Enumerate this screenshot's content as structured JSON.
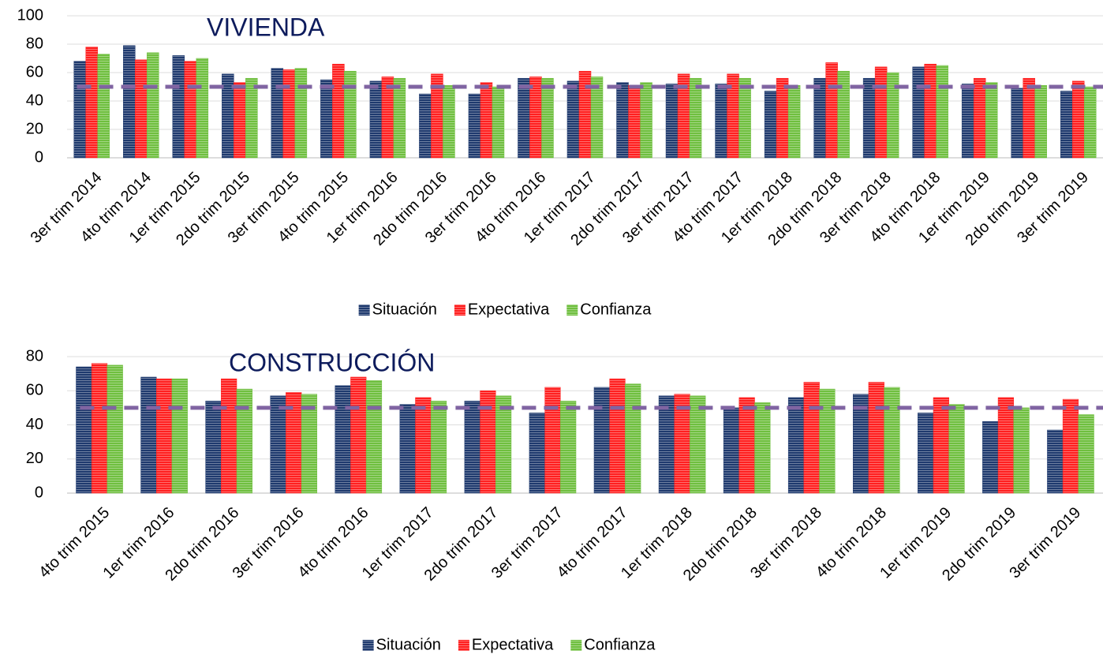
{
  "chart_data": [
    {
      "type": "bar",
      "title": "VIVIENDA",
      "categories": [
        "3er trim 2014",
        "4to trim 2014",
        "1er trim 2015",
        "2do trim 2015",
        "3er trim 2015",
        "4to trim 2015",
        "1er trim 2016",
        "2do trim 2016",
        "3er trim 2016",
        "4to trim 2016",
        "1er trim 2017",
        "2do trim 2017",
        "3er trim 2017",
        "4to trim 2017",
        "1er trim 2018",
        "2do trim 2018",
        "3er trim 2018",
        "4to trim 2018",
        "1er trim 2019",
        "2do trim 2019",
        "3er trim 2019"
      ],
      "series": [
        {
          "name": "Situación",
          "color": "#1f3a6e",
          "values": [
            68,
            79,
            72,
            59,
            63,
            55,
            54,
            45,
            45,
            56,
            54,
            53,
            52,
            52,
            47,
            56,
            56,
            64,
            52,
            49,
            47
          ]
        },
        {
          "name": "Expectativa",
          "color": "#ff1f1f",
          "values": [
            78,
            69,
            68,
            53,
            62,
            66,
            57,
            59,
            53,
            57,
            61,
            51,
            59,
            59,
            56,
            67,
            64,
            66,
            56,
            56,
            54
          ]
        },
        {
          "name": "Confianza",
          "color": "#6fbf3f",
          "values": [
            73,
            74,
            70,
            56,
            63,
            61,
            56,
            51,
            50,
            56,
            57,
            53,
            56,
            56,
            51,
            61,
            60,
            65,
            53,
            51,
            50
          ]
        }
      ],
      "reference": 50,
      "reference_color": "#8064a2",
      "ylim": [
        0,
        100
      ],
      "yticks": [
        0,
        20,
        40,
        60,
        80,
        100
      ]
    },
    {
      "type": "bar",
      "title": "CONSTRUCCIÓN",
      "categories": [
        "4to trim 2015",
        "1er trim 2016",
        "2do trim 2016",
        "3er trim 2016",
        "4to trim 2016",
        "1er trim 2017",
        "2do trim 2017",
        "3er trim 2017",
        "4to trim 2017",
        "1er trim 2018",
        "2do trim 2018",
        "3er trim 2018",
        "4to trim 2018",
        "1er trim 2019",
        "2do trim 2019",
        "3er trim 2019"
      ],
      "series": [
        {
          "name": "Situación",
          "color": "#1f3a6e",
          "values": [
            74,
            68,
            54,
            57,
            63,
            52,
            54,
            47,
            62,
            57,
            50,
            56,
            58,
            47,
            42,
            37
          ]
        },
        {
          "name": "Expectativa",
          "color": "#ff1f1f",
          "values": [
            76,
            67,
            67,
            59,
            68,
            56,
            60,
            62,
            67,
            58,
            56,
            65,
            65,
            56,
            56,
            55
          ]
        },
        {
          "name": "Confianza",
          "color": "#6fbf3f",
          "values": [
            75,
            67,
            61,
            58,
            66,
            54,
            57,
            54,
            64,
            57,
            53,
            61,
            62,
            52,
            50,
            46
          ]
        }
      ],
      "reference": 50,
      "reference_color": "#8064a2",
      "ylim": [
        0,
        80
      ],
      "yticks": [
        0,
        20,
        40,
        60,
        80
      ]
    }
  ]
}
